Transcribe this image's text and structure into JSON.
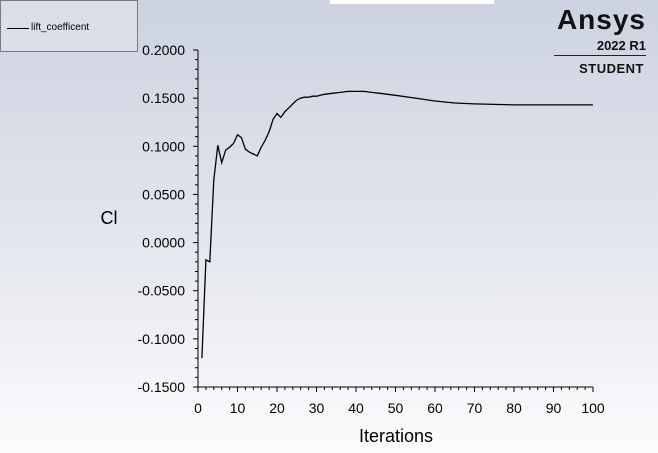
{
  "brand": {
    "name": "Ansys",
    "version": "2022 R1",
    "edition": "STUDENT"
  },
  "chart_data": {
    "type": "line",
    "title": "",
    "xlabel": "Iterations",
    "ylabel": "Cl",
    "xlim": [
      0,
      100
    ],
    "ylim": [
      -0.15,
      0.2
    ],
    "x_ticks": [
      0,
      10,
      20,
      30,
      40,
      50,
      60,
      70,
      80,
      90,
      100
    ],
    "x_tick_labels": [
      "0",
      "10",
      "20",
      "30",
      "40",
      "50",
      "60",
      "70",
      "80",
      "90",
      "100"
    ],
    "y_ticks": [
      -0.15,
      -0.1,
      -0.05,
      0,
      0.05,
      0.1,
      0.15,
      0.2
    ],
    "y_tick_labels": [
      "-0.1500",
      "-0.1000",
      "-0.0500",
      "0.0000",
      "0.0500",
      "0.1000",
      "0.1500",
      "0.2000"
    ],
    "legend_position": "top-left",
    "grid": false,
    "line_color": "#000000",
    "series": [
      {
        "name": "lift_coefficent",
        "x": [
          1,
          2,
          3,
          4,
          5,
          6,
          7,
          8,
          9,
          10,
          11,
          12,
          13,
          14,
          15,
          16,
          17,
          18,
          19,
          20,
          21,
          22,
          23,
          24,
          25,
          26,
          27,
          28,
          29,
          30,
          32,
          34,
          36,
          38,
          40,
          42,
          44,
          46,
          48,
          50,
          55,
          60,
          65,
          70,
          75,
          80,
          85,
          90,
          95,
          100
        ],
        "y": [
          -0.12,
          -0.018,
          -0.02,
          0.065,
          0.101,
          0.083,
          0.096,
          0.099,
          0.103,
          0.112,
          0.109,
          0.097,
          0.094,
          0.092,
          0.09,
          0.099,
          0.106,
          0.115,
          0.128,
          0.134,
          0.13,
          0.136,
          0.14,
          0.144,
          0.148,
          0.15,
          0.151,
          0.151,
          0.152,
          0.152,
          0.154,
          0.155,
          0.156,
          0.157,
          0.157,
          0.157,
          0.156,
          0.155,
          0.154,
          0.153,
          0.15,
          0.147,
          0.145,
          0.144,
          0.1435,
          0.143,
          0.143,
          0.143,
          0.143,
          0.143
        ]
      }
    ]
  }
}
